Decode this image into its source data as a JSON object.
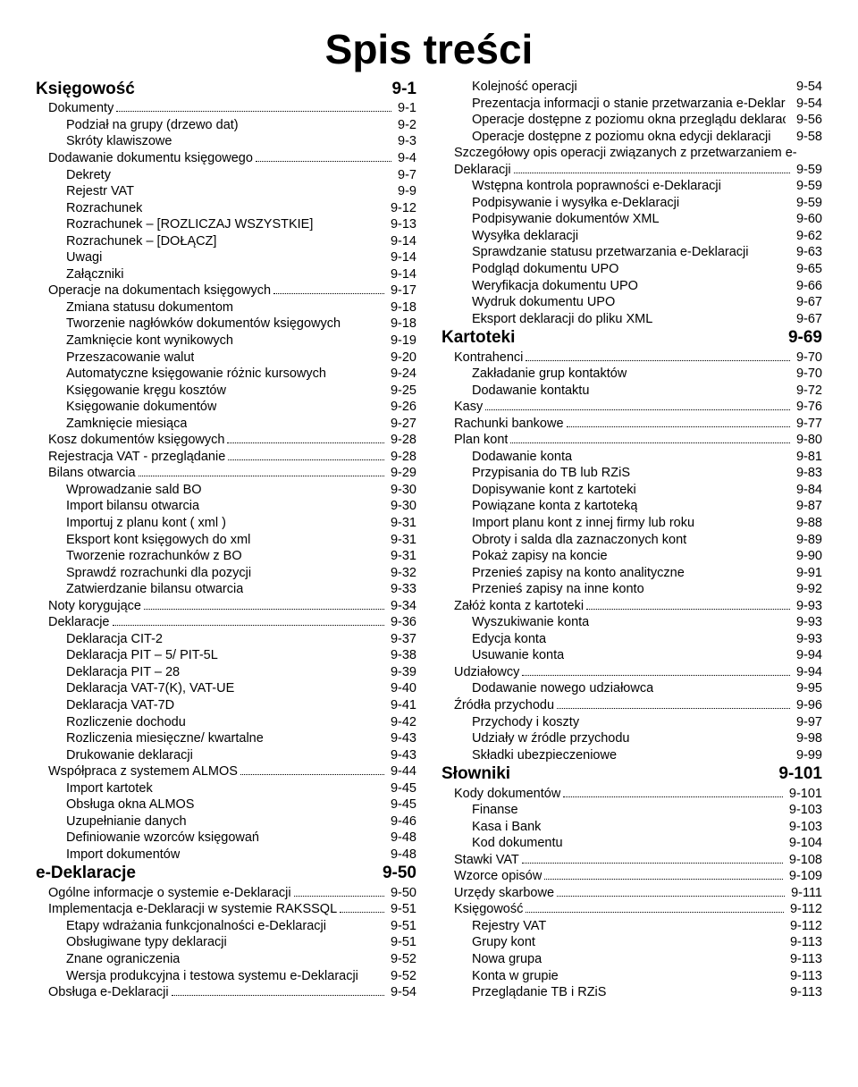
{
  "title": "Spis treści",
  "columns": [
    [
      {
        "level": 0,
        "label": "Księgowość",
        "page": "9-1",
        "dots": false
      },
      {
        "level": 1,
        "label": "Dokumenty",
        "page": "9-1",
        "dots": true
      },
      {
        "level": 2,
        "label": "Podział na grupy (drzewo dat)",
        "page": "9-2",
        "dots": false
      },
      {
        "level": 2,
        "label": "Skróty klawiszowe",
        "page": "9-3",
        "dots": false
      },
      {
        "level": 1,
        "label": "Dodawanie dokumentu księgowego",
        "page": "9-4",
        "dots": true
      },
      {
        "level": 2,
        "label": "Dekrety",
        "page": "9-7",
        "dots": false
      },
      {
        "level": 2,
        "label": "Rejestr VAT",
        "page": "9-9",
        "dots": false
      },
      {
        "level": 2,
        "label": "Rozrachunek",
        "page": "9-12",
        "dots": false
      },
      {
        "level": 2,
        "label": "Rozrachunek – [ROZLICZAJ WSZYSTKIE]",
        "page": "9-13",
        "dots": false
      },
      {
        "level": 2,
        "label": "Rozrachunek – [DOŁĄCZ]",
        "page": "9-14",
        "dots": false
      },
      {
        "level": 2,
        "label": "Uwagi",
        "page": "9-14",
        "dots": false
      },
      {
        "level": 2,
        "label": "Załączniki",
        "page": "9-14",
        "dots": false
      },
      {
        "level": 1,
        "label": "Operacje na dokumentach księgowych",
        "page": "9-17",
        "dots": true
      },
      {
        "level": 2,
        "label": "Zmiana statusu dokumentom",
        "page": "9-18",
        "dots": false
      },
      {
        "level": 2,
        "label": "Tworzenie nagłówków dokumentów księgowych",
        "page": "9-18",
        "dots": false
      },
      {
        "level": 2,
        "label": "Zamknięcie kont wynikowych",
        "page": "9-19",
        "dots": false
      },
      {
        "level": 2,
        "label": "Przeszacowanie walut",
        "page": "9-20",
        "dots": false
      },
      {
        "level": 2,
        "label": "Automatyczne księgowanie różnic kursowych",
        "page": "9-24",
        "dots": false
      },
      {
        "level": 2,
        "label": "Księgowanie kręgu kosztów",
        "page": "9-25",
        "dots": false
      },
      {
        "level": 2,
        "label": "Księgowanie dokumentów",
        "page": "9-26",
        "dots": false
      },
      {
        "level": 2,
        "label": "Zamknięcie miesiąca",
        "page": "9-27",
        "dots": false
      },
      {
        "level": 1,
        "label": "Kosz dokumentów księgowych",
        "page": "9-28",
        "dots": true
      },
      {
        "level": 1,
        "label": "Rejestracja VAT - przeglądanie",
        "page": "9-28",
        "dots": true
      },
      {
        "level": 1,
        "label": "Bilans otwarcia",
        "page": "9-29",
        "dots": true
      },
      {
        "level": 2,
        "label": "Wprowadzanie sald BO",
        "page": "9-30",
        "dots": false
      },
      {
        "level": 2,
        "label": "Import bilansu otwarcia",
        "page": "9-30",
        "dots": false
      },
      {
        "level": 2,
        "label": "Importuj z planu kont ( xml )",
        "page": "9-31",
        "dots": false
      },
      {
        "level": 2,
        "label": "Eksport kont księgowych do xml",
        "page": "9-31",
        "dots": false
      },
      {
        "level": 2,
        "label": "Tworzenie rozrachunków z BO",
        "page": "9-31",
        "dots": false
      },
      {
        "level": 2,
        "label": "Sprawdź rozrachunki dla pozycji",
        "page": "9-32",
        "dots": false
      },
      {
        "level": 2,
        "label": "Zatwierdzanie bilansu otwarcia",
        "page": "9-33",
        "dots": false
      },
      {
        "level": 1,
        "label": "Noty korygujące",
        "page": "9-34",
        "dots": true
      },
      {
        "level": 1,
        "label": "Deklaracje",
        "page": "9-36",
        "dots": true
      },
      {
        "level": 2,
        "label": "Deklaracja CIT-2",
        "page": "9-37",
        "dots": false
      },
      {
        "level": 2,
        "label": "Deklaracja PIT – 5/ PIT-5L",
        "page": "9-38",
        "dots": false
      },
      {
        "level": 2,
        "label": "Deklaracja PIT – 28",
        "page": "9-39",
        "dots": false
      },
      {
        "level": 2,
        "label": "Deklaracja VAT-7(K), VAT-UE",
        "page": "9-40",
        "dots": false
      },
      {
        "level": 2,
        "label": "Deklaracja VAT-7D",
        "page": "9-41",
        "dots": false
      },
      {
        "level": 2,
        "label": "Rozliczenie dochodu",
        "page": "9-42",
        "dots": false
      },
      {
        "level": 2,
        "label": "Rozliczenia miesięczne/ kwartalne",
        "page": "9-43",
        "dots": false
      },
      {
        "level": 2,
        "label": "Drukowanie deklaracji",
        "page": "9-43",
        "dots": false
      },
      {
        "level": 1,
        "label": "Współpraca z systemem ALMOS",
        "page": "9-44",
        "dots": true
      },
      {
        "level": 2,
        "label": "Import kartotek",
        "page": "9-45",
        "dots": false
      },
      {
        "level": 2,
        "label": "Obsługa okna ALMOS",
        "page": "9-45",
        "dots": false
      },
      {
        "level": 2,
        "label": "Uzupełnianie danych",
        "page": "9-46",
        "dots": false
      },
      {
        "level": 2,
        "label": "Definiowanie wzorców księgowań",
        "page": "9-48",
        "dots": false
      },
      {
        "level": 2,
        "label": "Import dokumentów",
        "page": "9-48",
        "dots": false
      },
      {
        "level": 0,
        "label": "e-Deklaracje",
        "page": "9-50",
        "dots": false
      },
      {
        "level": 1,
        "label": "Ogólne informacje o systemie e-Deklaracji",
        "page": "9-50",
        "dots": true
      },
      {
        "level": 1,
        "label": "Implementacja e-Deklaracji w systemie RAKSSQL",
        "page": "9-51",
        "dots": true
      },
      {
        "level": 2,
        "label": "Etapy wdrażania funkcjonalności e-Deklaracji",
        "page": "9-51",
        "dots": false
      },
      {
        "level": 2,
        "label": "Obsługiwane typy deklaracji",
        "page": "9-51",
        "dots": false
      },
      {
        "level": 2,
        "label": "Znane ograniczenia",
        "page": "9-52",
        "dots": false
      },
      {
        "level": 2,
        "label": "Wersja produkcyjna i testowa systemu e-Deklaracji",
        "page": "9-52",
        "dots": false
      },
      {
        "level": 1,
        "label": "Obsługa e-Deklaracji",
        "page": "9-54",
        "dots": true
      }
    ],
    [
      {
        "level": 2,
        "label": "Kolejność operacji",
        "page": "9-54",
        "dots": false
      },
      {
        "level": 2,
        "label": "Prezentacja informacji o stanie przetwarzania e-Deklaracji",
        "page": "9-54",
        "dots": false
      },
      {
        "level": 2,
        "label": "Operacje dostępne z poziomu okna przeglądu deklaracji",
        "page": "9-56",
        "dots": false
      },
      {
        "level": 2,
        "label": "Operacje dostępne z poziomu okna edycji deklaracji",
        "page": "9-58",
        "dots": false
      },
      {
        "level": 1,
        "label": "Szczegółowy opis operacji związanych z przetwarzaniem e-Deklaracji",
        "page": "9-59",
        "dots": true,
        "wrap": true
      },
      {
        "level": 2,
        "label": "Wstępna kontrola poprawności e-Deklaracji",
        "page": "9-59",
        "dots": false
      },
      {
        "level": 2,
        "label": "Podpisywanie i wysyłka e-Deklaracji",
        "page": "9-59",
        "dots": false
      },
      {
        "level": 2,
        "label": "Podpisywanie dokumentów XML",
        "page": "9-60",
        "dots": false
      },
      {
        "level": 2,
        "label": "Wysyłka deklaracji",
        "page": "9-62",
        "dots": false
      },
      {
        "level": 2,
        "label": "Sprawdzanie statusu przetwarzania e-Deklaracji",
        "page": "9-63",
        "dots": false
      },
      {
        "level": 2,
        "label": "Podgląd dokumentu UPO",
        "page": "9-65",
        "dots": false
      },
      {
        "level": 2,
        "label": "Weryfikacja dokumentu UPO",
        "page": "9-66",
        "dots": false
      },
      {
        "level": 2,
        "label": "Wydruk dokumentu UPO",
        "page": "9-67",
        "dots": false
      },
      {
        "level": 2,
        "label": "Eksport deklaracji do pliku XML",
        "page": "9-67",
        "dots": false
      },
      {
        "level": 0,
        "label": "Kartoteki",
        "page": "9-69",
        "dots": false
      },
      {
        "level": 1,
        "label": "Kontrahenci",
        "page": "9-70",
        "dots": true
      },
      {
        "level": 2,
        "label": "Zakładanie grup kontaktów",
        "page": "9-70",
        "dots": false
      },
      {
        "level": 2,
        "label": "Dodawanie kontaktu",
        "page": "9-72",
        "dots": false
      },
      {
        "level": 1,
        "label": "Kasy",
        "page": "9-76",
        "dots": true
      },
      {
        "level": 1,
        "label": "Rachunki bankowe",
        "page": "9-77",
        "dots": true
      },
      {
        "level": 1,
        "label": "Plan kont",
        "page": "9-80",
        "dots": true
      },
      {
        "level": 2,
        "label": "Dodawanie konta",
        "page": "9-81",
        "dots": false
      },
      {
        "level": 2,
        "label": "Przypisania do TB lub RZiS",
        "page": "9-83",
        "dots": false
      },
      {
        "level": 2,
        "label": "Dopisywanie kont z kartoteki",
        "page": "9-84",
        "dots": false
      },
      {
        "level": 2,
        "label": "Powiązane konta z kartoteką",
        "page": "9-87",
        "dots": false
      },
      {
        "level": 2,
        "label": "Import planu kont z innej firmy lub roku",
        "page": "9-88",
        "dots": false
      },
      {
        "level": 2,
        "label": "Obroty i salda dla zaznaczonych kont",
        "page": "9-89",
        "dots": false
      },
      {
        "level": 2,
        "label": "Pokaż zapisy na koncie",
        "page": "9-90",
        "dots": false
      },
      {
        "level": 2,
        "label": "Przenieś zapisy na konto analityczne",
        "page": "9-91",
        "dots": false
      },
      {
        "level": 2,
        "label": "Przenieś zapisy na inne konto",
        "page": "9-92",
        "dots": false
      },
      {
        "level": 1,
        "label": "Załóż konta z kartoteki",
        "page": "9-93",
        "dots": true
      },
      {
        "level": 2,
        "label": "Wyszukiwanie konta",
        "page": "9-93",
        "dots": false
      },
      {
        "level": 2,
        "label": "Edycja konta",
        "page": "9-93",
        "dots": false
      },
      {
        "level": 2,
        "label": "Usuwanie konta",
        "page": "9-94",
        "dots": false
      },
      {
        "level": 1,
        "label": "Udziałowcy",
        "page": "9-94",
        "dots": true
      },
      {
        "level": 2,
        "label": "Dodawanie nowego udziałowca",
        "page": "9-95",
        "dots": false
      },
      {
        "level": 1,
        "label": "Źródła przychodu",
        "page": "9-96",
        "dots": true
      },
      {
        "level": 2,
        "label": "Przychody i koszty",
        "page": "9-97",
        "dots": false
      },
      {
        "level": 2,
        "label": "Udziały w źródle przychodu",
        "page": "9-98",
        "dots": false
      },
      {
        "level": 2,
        "label": "Składki ubezpieczeniowe",
        "page": "9-99",
        "dots": false
      },
      {
        "level": 0,
        "label": "Słowniki",
        "page": "9-101",
        "dots": false
      },
      {
        "level": 1,
        "label": "Kody dokumentów",
        "page": "9-101",
        "dots": true
      },
      {
        "level": 2,
        "label": "Finanse",
        "page": "9-103",
        "dots": false
      },
      {
        "level": 2,
        "label": "Kasa i Bank",
        "page": "9-103",
        "dots": false
      },
      {
        "level": 2,
        "label": "Kod dokumentu",
        "page": "9-104",
        "dots": false
      },
      {
        "level": 1,
        "label": "Stawki VAT",
        "page": "9-108",
        "dots": true
      },
      {
        "level": 1,
        "label": "Wzorce opisów",
        "page": "9-109",
        "dots": true
      },
      {
        "level": 1,
        "label": "Urzędy skarbowe",
        "page": "9-111",
        "dots": true
      },
      {
        "level": 1,
        "label": "Księgowość",
        "page": "9-112",
        "dots": true
      },
      {
        "level": 2,
        "label": "Rejestry VAT",
        "page": "9-112",
        "dots": false
      },
      {
        "level": 2,
        "label": "Grupy kont",
        "page": "9-113",
        "dots": false
      },
      {
        "level": 2,
        "label": "Nowa grupa",
        "page": "9-113",
        "dots": false
      },
      {
        "level": 2,
        "label": "Konta w grupie",
        "page": "9-113",
        "dots": false
      },
      {
        "level": 2,
        "label": "Przeglądanie TB i RZiS",
        "page": "9-113",
        "dots": false
      }
    ]
  ]
}
